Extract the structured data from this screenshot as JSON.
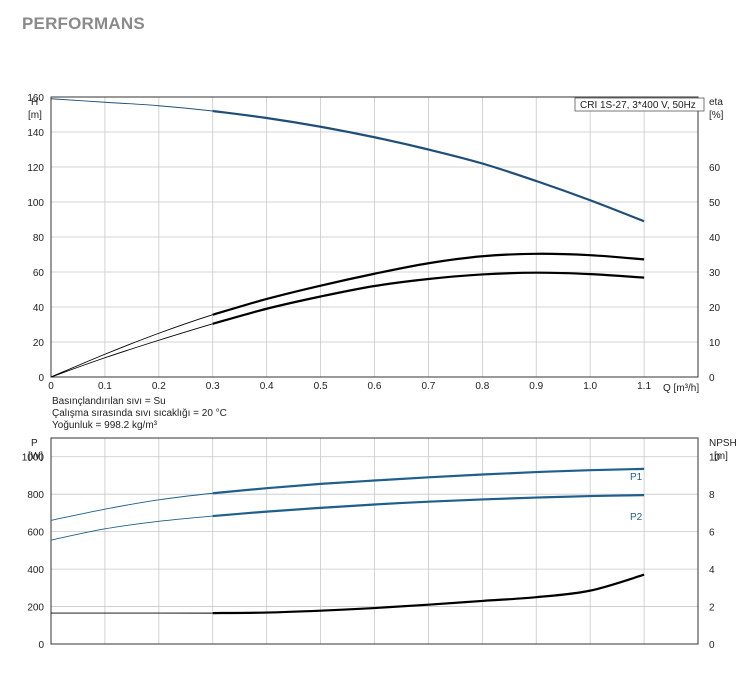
{
  "page_title": "PERFORMANS",
  "legend_box": "CRI 1S-27, 3*400 V, 50Hz",
  "fluid_info": [
    "Basınçlandırılan sıvı = Su",
    "Çalışma sırasında sıvı sıcaklığı = 20 °C",
    "Yoğunluk = 998.2 kg/m³"
  ],
  "colors": {
    "head": "#1f4e79",
    "power": "#1f5f8b",
    "efficiency": "#000000",
    "npsh": "#000000",
    "grid": "#c8c8c8"
  },
  "chart_data": [
    {
      "type": "line",
      "name": "head-efficiency",
      "y_label_top": "H",
      "y_unit": "[m]",
      "y2_label_top": "eta",
      "y2_unit": "[%]",
      "x_label": "Q [m³/h]",
      "xlim": [
        0,
        1.2
      ],
      "x_ticks": [
        "0",
        "0.1",
        "0.2",
        "0.3",
        "0.4",
        "0.5",
        "0.6",
        "0.7",
        "0.8",
        "0.9",
        "1.0",
        "1.1"
      ],
      "x_tick_values": [
        0,
        0.1,
        0.2,
        0.3,
        0.4,
        0.5,
        0.6,
        0.7,
        0.8,
        0.9,
        1.0,
        1.1
      ],
      "ylim": [
        0,
        160
      ],
      "y_ticks": [
        "0",
        "20",
        "40",
        "60",
        "80",
        "100",
        "120",
        "140",
        "160"
      ],
      "y2_ticks": [
        "0",
        "10",
        "20",
        "30",
        "40",
        "50",
        "60"
      ],
      "y2_tick_values": [
        0,
        10,
        20,
        30,
        40,
        50,
        60
      ],
      "y2_scale": "eta % shown on H axis where 10 % = 20 m",
      "grid": true,
      "series": [
        {
          "key": "H",
          "x": [
            0,
            0.1,
            0.2,
            0.3,
            0.4,
            0.5,
            0.6,
            0.7,
            0.8,
            0.9,
            1.0,
            1.1
          ],
          "values": [
            159,
            157,
            155,
            152,
            148,
            143,
            137,
            130,
            122,
            112,
            101,
            89
          ],
          "bold_from": 0.3
        },
        {
          "key": "eta-upper",
          "x": [
            0,
            0.1,
            0.2,
            0.3,
            0.4,
            0.5,
            0.6,
            0.7,
            0.8,
            0.9,
            1.0,
            1.1
          ],
          "values": [
            0,
            6.5,
            12.5,
            17.8,
            22.3,
            26.1,
            29.5,
            32.5,
            34.5,
            35.2,
            34.8,
            33.6
          ],
          "bold_from": 0.3
        },
        {
          "key": "eta-lower",
          "x": [
            0,
            0.1,
            0.2,
            0.3,
            0.4,
            0.5,
            0.6,
            0.7,
            0.8,
            0.9,
            1.0,
            1.1
          ],
          "values": [
            0,
            5.5,
            10.5,
            15.2,
            19.5,
            23.0,
            26.0,
            28.0,
            29.3,
            29.8,
            29.4,
            28.4
          ],
          "bold_from": 0.3
        }
      ]
    },
    {
      "type": "line",
      "name": "power-npsh",
      "y_label_top": "P",
      "y_unit": "[W]",
      "y2_label_top": "NPSH",
      "y2_unit": "[m]",
      "xlim": [
        0,
        1.2
      ],
      "x_tick_values": [
        0,
        0.1,
        0.2,
        0.3,
        0.4,
        0.5,
        0.6,
        0.7,
        0.8,
        0.9,
        1.0,
        1.1
      ],
      "ylim": [
        0,
        1100
      ],
      "y_ticks": [
        "0",
        "200",
        "400",
        "600",
        "800",
        "1000"
      ],
      "y_tick_values": [
        0,
        200,
        400,
        600,
        800,
        1000
      ],
      "y2_ticks": [
        "0",
        "2",
        "4",
        "6",
        "8",
        "10"
      ],
      "y2_tick_values": [
        0,
        2,
        4,
        6,
        8,
        10
      ],
      "grid": true,
      "series": [
        {
          "name": "P1",
          "x": [
            0,
            0.1,
            0.2,
            0.3,
            0.4,
            0.5,
            0.6,
            0.7,
            0.8,
            0.9,
            1.0,
            1.1
          ],
          "values": [
            660,
            720,
            770,
            805,
            832,
            855,
            873,
            890,
            905,
            918,
            928,
            935
          ],
          "bold_from": 0.3
        },
        {
          "name": "P2",
          "x": [
            0,
            0.1,
            0.2,
            0.3,
            0.4,
            0.5,
            0.6,
            0.7,
            0.8,
            0.9,
            1.0,
            1.1
          ],
          "values": [
            555,
            615,
            655,
            683,
            707,
            727,
            745,
            760,
            772,
            782,
            790,
            795
          ],
          "bold_from": 0.3
        },
        {
          "key": "NPSH",
          "x": [
            0,
            0.1,
            0.2,
            0.3,
            0.4,
            0.5,
            0.6,
            0.7,
            0.8,
            0.9,
            1.0,
            1.1
          ],
          "npsh_values": [
            1.65,
            1.65,
            1.65,
            1.65,
            1.68,
            1.78,
            1.92,
            2.1,
            2.3,
            2.5,
            2.85,
            3.7
          ],
          "bold_from": 0.3
        }
      ]
    }
  ]
}
